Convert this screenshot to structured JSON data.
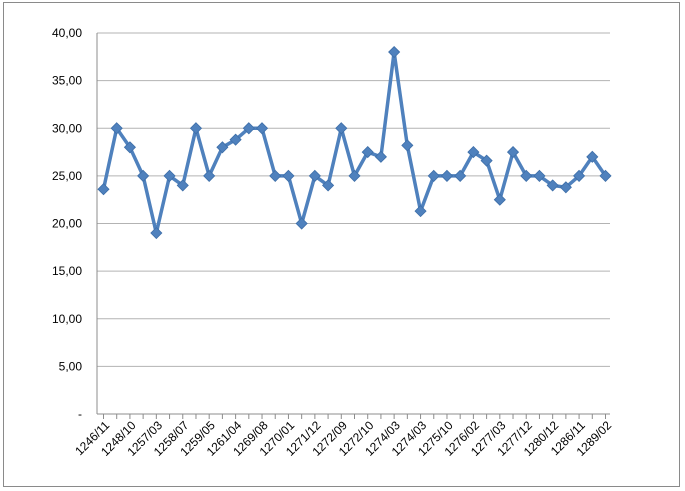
{
  "chart_data": {
    "type": "line",
    "title": "",
    "xlabel": "",
    "ylabel": "",
    "ylim": [
      0,
      40
    ],
    "y_ticks": [
      "-",
      "5,00",
      "10,00",
      "15,00",
      "20,00",
      "25,00",
      "30,00",
      "35,00",
      "40,00"
    ],
    "x_tick_labels": [
      "1246/11",
      "1248/10",
      "1257/03",
      "1258/07",
      "1259/05",
      "1261/04",
      "1269/08",
      "1270/01",
      "1271/12",
      "1272/09",
      "1272/10",
      "1274/03",
      "1274/03",
      "1275/10",
      "1276/02",
      "1277/03",
      "1277/12",
      "1280/12",
      "1286/11",
      "1289/02"
    ],
    "grid": true,
    "legend": "none",
    "line_color": "#4f81bd",
    "series": [
      {
        "values": [
          23.6,
          30.0,
          28.0,
          25.0,
          19.0,
          25.0,
          24.0,
          30.0,
          25.0,
          28.0,
          28.8,
          30.0,
          30.0,
          25.0,
          25.0,
          20.0,
          25.0,
          24.0,
          30.0,
          25.0,
          27.5,
          27.0,
          38.0,
          28.2,
          21.3,
          25.0,
          25.0,
          25.0,
          27.5,
          26.6,
          22.5,
          27.5,
          25.0,
          25.0,
          24.0,
          23.8,
          25.0,
          27.0,
          25.0
        ]
      }
    ]
  }
}
